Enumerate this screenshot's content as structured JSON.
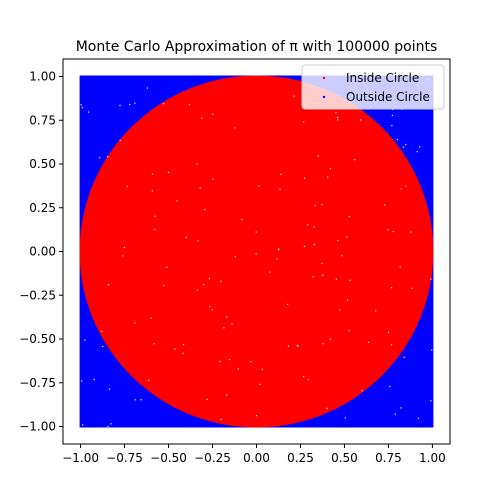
{
  "chart_data": {
    "type": "scatter",
    "title": "Monte Carlo Approximation of π with 100000 points",
    "xlabel": "",
    "ylabel": "",
    "xlim": [
      -1.1,
      1.1
    ],
    "ylim": [
      -1.1,
      1.1
    ],
    "aspect": "equal",
    "grid": false,
    "legend_position": "top-right",
    "total_points": 100000,
    "x_ticks": [
      -1.0,
      -0.75,
      -0.5,
      -0.25,
      0.0,
      0.25,
      0.5,
      0.75,
      1.0
    ],
    "y_ticks": [
      -1.0,
      -0.75,
      -0.5,
      -0.25,
      0.0,
      0.25,
      0.5,
      0.75,
      1.0
    ],
    "x_tick_labels": [
      "−1.00",
      "−0.75",
      "−0.50",
      "−0.25",
      "0.00",
      "0.25",
      "0.50",
      "0.75",
      "1.00"
    ],
    "y_tick_labels": [
      "−1.00",
      "−0.75",
      "−0.50",
      "−0.25",
      "0.00",
      "0.25",
      "0.50",
      "0.75",
      "1.00"
    ],
    "series": [
      {
        "name": "Inside Circle",
        "color": "#ff0000",
        "region": "x^2 + y^2 <= 1",
        "x_range": [
          -1,
          1
        ],
        "y_range": [
          -1,
          1
        ]
      },
      {
        "name": "Outside Circle",
        "color": "#0000ff",
        "region": "x^2 + y^2 > 1",
        "x_range": [
          -1,
          1
        ],
        "y_range": [
          -1,
          1
        ]
      }
    ]
  }
}
